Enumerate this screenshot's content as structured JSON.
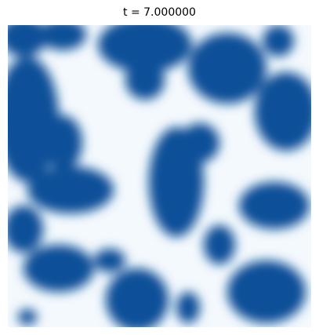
{
  "chart_data": {
    "type": "heatmap",
    "title": "t = 7.000000"
  }
}
